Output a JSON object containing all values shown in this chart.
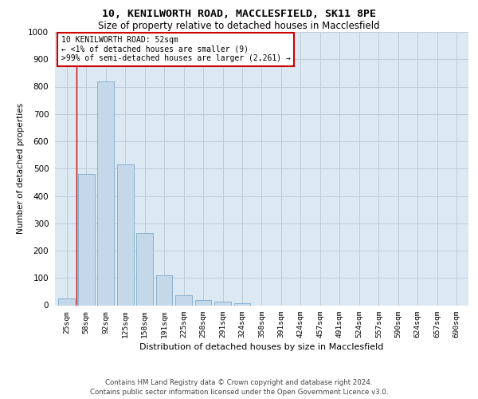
{
  "title1": "10, KENILWORTH ROAD, MACCLESFIELD, SK11 8PE",
  "title2": "Size of property relative to detached houses in Macclesfield",
  "xlabel": "Distribution of detached houses by size in Macclesfield",
  "ylabel": "Number of detached properties",
  "categories": [
    "25sqm",
    "58sqm",
    "92sqm",
    "125sqm",
    "158sqm",
    "191sqm",
    "225sqm",
    "258sqm",
    "291sqm",
    "324sqm",
    "358sqm",
    "391sqm",
    "424sqm",
    "457sqm",
    "491sqm",
    "524sqm",
    "557sqm",
    "590sqm",
    "624sqm",
    "657sqm",
    "690sqm"
  ],
  "values": [
    25,
    480,
    820,
    515,
    265,
    110,
    37,
    18,
    13,
    8,
    0,
    0,
    0,
    0,
    0,
    0,
    0,
    0,
    0,
    0,
    0
  ],
  "bar_color": "#c5d8ea",
  "bar_edge_color": "#7aabcc",
  "background_color": "#ffffff",
  "axes_bg_color": "#dce8f2",
  "grid_color": "#c0cdd8",
  "ann_edge_color": "#cc0000",
  "ann_line1": "10 KENILWORTH ROAD: 52sqm",
  "ann_line2": "← <1% of detached houses are smaller (9)",
  "ann_line3": ">99% of semi-detached houses are larger (2,261) →",
  "ylim": [
    0,
    1000
  ],
  "yticks": [
    0,
    100,
    200,
    300,
    400,
    500,
    600,
    700,
    800,
    900,
    1000
  ],
  "footer1": "Contains HM Land Registry data © Crown copyright and database right 2024.",
  "footer2": "Contains public sector information licensed under the Open Government Licence v3.0."
}
